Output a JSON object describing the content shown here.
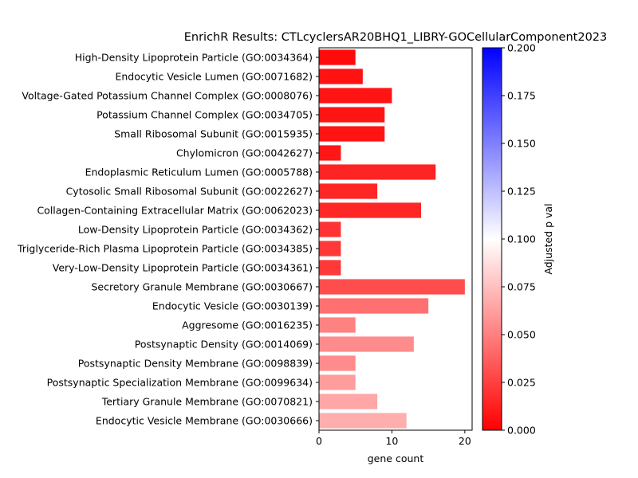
{
  "chart_data": {
    "type": "bar",
    "orientation": "horizontal",
    "title": "EnrichR Results: CTLcyclersAR20BHQ1_LIBRY-GOCellularComponent2023",
    "xlabel": "gene count",
    "ylabel": "",
    "xlim": [
      0,
      21
    ],
    "xticks": [
      0,
      10,
      20
    ],
    "grid": false,
    "categories": [
      "High-Density Lipoprotein Particle (GO:0034364)",
      "Endocytic Vesicle Lumen (GO:0071682)",
      "Voltage-Gated Potassium Channel Complex (GO:0008076)",
      "Potassium Channel Complex (GO:0034705)",
      "Small Ribosomal Subunit (GO:0015935)",
      "Chylomicron (GO:0042627)",
      "Endoplasmic Reticulum Lumen (GO:0005788)",
      "Cytosolic Small Ribosomal Subunit (GO:0022627)",
      "Collagen-Containing Extracellular Matrix (GO:0062023)",
      "Low-Density Lipoprotein Particle (GO:0034362)",
      "Triglyceride-Rich Plasma Lipoprotein Particle (GO:0034385)",
      "Very-Low-Density Lipoprotein Particle (GO:0034361)",
      "Secretory Granule Membrane (GO:0030667)",
      "Endocytic Vesicle (GO:0030139)",
      "Aggresome (GO:0016235)",
      "Postsynaptic Density (GO:0014069)",
      "Postsynaptic Density Membrane (GO:0098839)",
      "Postsynaptic Specialization Membrane (GO:0099634)",
      "Tertiary Granule Membrane (GO:0070821)",
      "Endocytic Vesicle Membrane (GO:0030666)"
    ],
    "values": [
      5,
      6,
      10,
      9,
      9,
      3,
      16,
      8,
      14,
      3,
      3,
      3,
      20,
      15,
      5,
      13,
      5,
      5,
      8,
      12
    ],
    "adjusted_p": [
      0.0045,
      0.007,
      0.008,
      0.008,
      0.008,
      0.009,
      0.014,
      0.015,
      0.015,
      0.02,
      0.022,
      0.022,
      0.03,
      0.044,
      0.051,
      0.055,
      0.055,
      0.061,
      0.065,
      0.068
    ],
    "colorbar": {
      "label": "Adjusted p val",
      "range": [
        0,
        0.2
      ],
      "ticks": [
        "0.000",
        "0.025",
        "0.050",
        "0.075",
        "0.100",
        "0.125",
        "0.150",
        "0.175",
        "0.200"
      ],
      "colors": [
        "#ff0000",
        "#ffffff",
        "#0000ff"
      ]
    }
  }
}
